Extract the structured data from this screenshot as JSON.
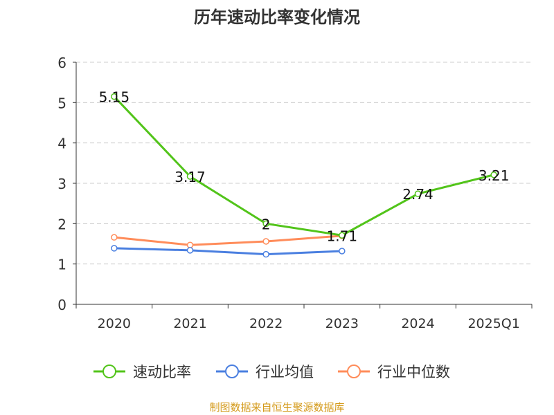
{
  "chart_data": {
    "type": "line",
    "title": "历年速动比率变化情况",
    "categories": [
      "2020",
      "2021",
      "2022",
      "2023",
      "2024",
      "2025Q1"
    ],
    "ylim": [
      0,
      6
    ],
    "yticks": [
      0,
      1,
      2,
      3,
      4,
      5,
      6
    ],
    "grid": true,
    "legend_position": "bottom",
    "series": [
      {
        "name": "速动比率",
        "color": "#52c41a",
        "values": [
          5.15,
          3.17,
          2,
          1.71,
          2.74,
          3.21
        ],
        "labels": [
          "5.15",
          "3.17",
          "2",
          "1.71",
          "2.74",
          "3.21"
        ]
      },
      {
        "name": "行业均值",
        "color": "#4a7fe0",
        "values": [
          1.39,
          1.34,
          1.24,
          1.32,
          null,
          null
        ]
      },
      {
        "name": "行业中位数",
        "color": "#ff8c5a",
        "values": [
          1.66,
          1.47,
          1.56,
          1.7,
          null,
          null
        ]
      }
    ],
    "source": "制图数据来自恒生聚源数据库"
  }
}
